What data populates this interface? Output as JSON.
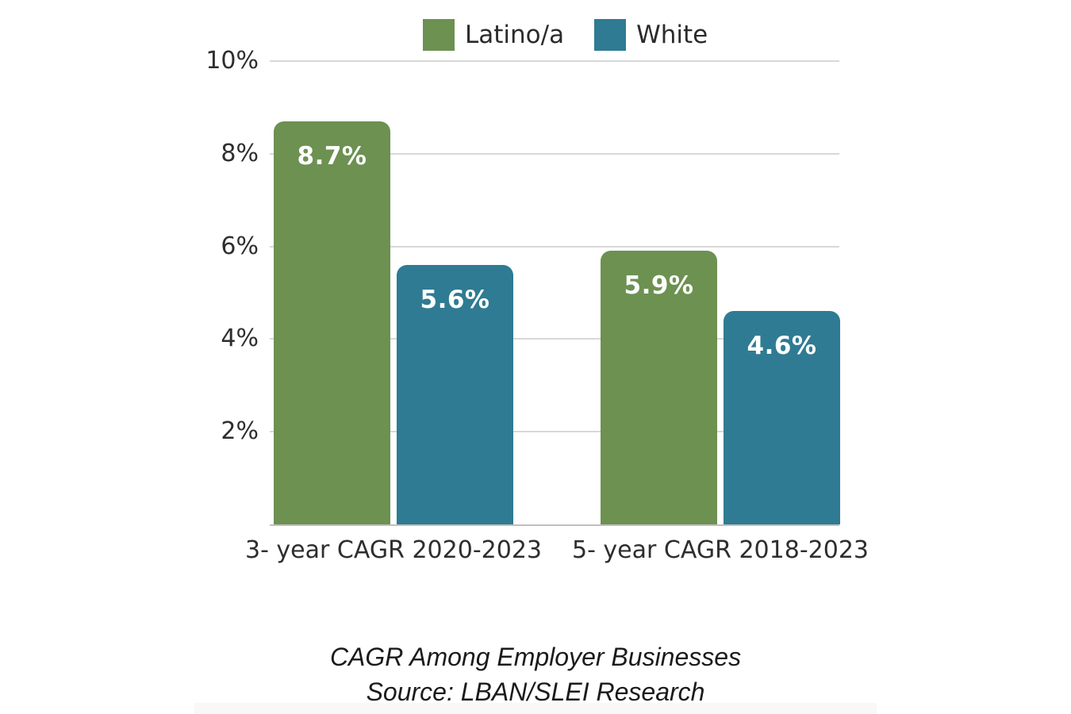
{
  "chart_data": {
    "type": "bar",
    "title": "CAGR Among Employer Businesses",
    "source": "Source: LBAN/SLEI Research",
    "categories": [
      "3- year CAGR 2020-2023",
      "5- year CAGR 2018-2023"
    ],
    "series": [
      {
        "name": "Latino/a",
        "color": "#6D9151",
        "values": [
          8.7,
          5.9
        ],
        "value_labels": [
          "8.7%",
          "5.9%"
        ]
      },
      {
        "name": "White",
        "color": "#2F7B93",
        "values": [
          5.6,
          4.6
        ],
        "value_labels": [
          "5.6%",
          "4.6%"
        ]
      }
    ],
    "ylim": [
      0,
      10
    ],
    "yticks": [
      2,
      4,
      6,
      8,
      10
    ],
    "ytick_labels": [
      "2%",
      "4%",
      "6%",
      "8%",
      "10%"
    ],
    "grid": true,
    "legend_position": "top"
  },
  "colors": {
    "latino_green": "#6D9151",
    "white_teal": "#2F7B93",
    "gridline": "#D8D8D8",
    "axis_line": "#BFBFBF",
    "axis_text": "#2E2E2E",
    "bar_value_text": "#FFFFFF",
    "background": "#FFFFFF"
  }
}
